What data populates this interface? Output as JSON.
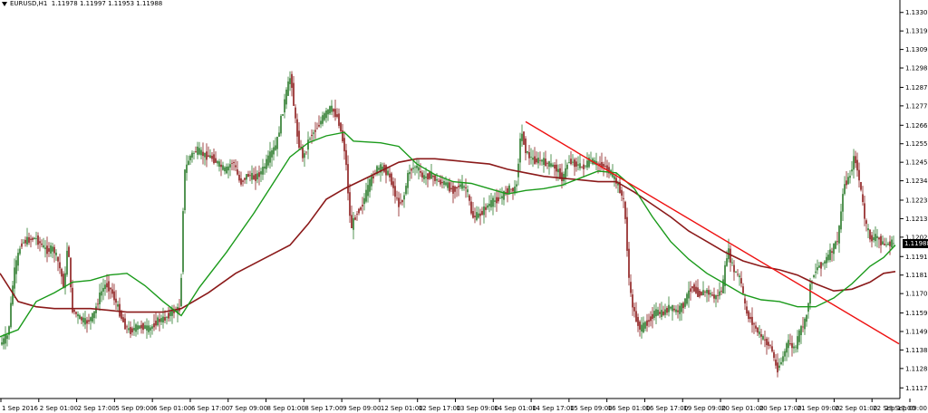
{
  "header": {
    "symbol": "EURUSD,H1",
    "ohlc": "1.11978 1.11997 1.11953 1.11988"
  },
  "price_tag": "1.11988",
  "colors": {
    "bull_candle": "#2a7a2a",
    "bear_candle": "#8b1a1a",
    "ma_fast": "#1a9a1a",
    "ma_slow": "#8b1a1a",
    "trendline": "#ee1111",
    "axis": "#000000"
  },
  "chart_data": {
    "type": "candlestick",
    "symbol": "EURUSD",
    "timeframe": "H1",
    "y_ticks": [
      "1.13300",
      "1.13195",
      "1.13090",
      "1.12985",
      "1.12875",
      "1.12770",
      "1.12660",
      "1.12555",
      "1.12450",
      "1.12345",
      "1.12235",
      "1.12130",
      "1.12025",
      "1.11915",
      "1.11810",
      "1.11705",
      "1.11595",
      "1.11490",
      "1.11385",
      "1.11280",
      "1.11170"
    ],
    "x_ticks": [
      "1 Sep 2016",
      "2 Sep 01:00",
      "2 Sep 17:00",
      "5 Sep 09:00",
      "6 Sep 01:00",
      "6 Sep 17:00",
      "7 Sep 09:00",
      "8 Sep 01:00",
      "8 Sep 17:00",
      "9 Sep 09:00",
      "12 Sep 01:00",
      "12 Sep 17:00",
      "13 Sep 09:00",
      "14 Sep 01:00",
      "14 Sep 17:00",
      "15 Sep 09:00",
      "16 Sep 01:00",
      "16 Sep 17:00",
      "19 Sep 09:00",
      "20 Sep 01:00",
      "20 Sep 17:00",
      "21 Sep 09:00",
      "22 Sep 01:00",
      "22 Sep 17:00",
      "23 Sep 09:00"
    ],
    "ylim": [
      1.1112,
      1.1335
    ],
    "close_path": [
      [
        0,
        1.1141
      ],
      [
        10,
        1.1147
      ],
      [
        16,
        1.1181
      ],
      [
        24,
        1.1199
      ],
      [
        32,
        1.1201
      ],
      [
        40,
        1.1202
      ],
      [
        52,
        1.1195
      ],
      [
        60,
        1.1196
      ],
      [
        66,
        1.1187
      ],
      [
        72,
        1.1173
      ],
      [
        76,
        1.1203
      ],
      [
        80,
        1.1162
      ],
      [
        88,
        1.1157
      ],
      [
        96,
        1.1154
      ],
      [
        104,
        1.1158
      ],
      [
        112,
        1.1171
      ],
      [
        118,
        1.1176
      ],
      [
        124,
        1.1172
      ],
      [
        132,
        1.1161
      ],
      [
        138,
        1.1153
      ],
      [
        144,
        1.1149
      ],
      [
        150,
        1.1151
      ],
      [
        158,
        1.1152
      ],
      [
        166,
        1.115
      ],
      [
        174,
        1.1155
      ],
      [
        182,
        1.1156
      ],
      [
        190,
        1.116
      ],
      [
        196,
        1.1161
      ],
      [
        200,
        1.1162
      ],
      [
        204,
        1.1238
      ],
      [
        210,
        1.1248
      ],
      [
        218,
        1.1252
      ],
      [
        226,
        1.1249
      ],
      [
        234,
        1.1248
      ],
      [
        242,
        1.1244
      ],
      [
        250,
        1.124
      ],
      [
        258,
        1.1246
      ],
      [
        266,
        1.1233
      ],
      [
        274,
        1.1238
      ],
      [
        282,
        1.1236
      ],
      [
        290,
        1.124
      ],
      [
        298,
        1.1248
      ],
      [
        306,
        1.1255
      ],
      [
        312,
        1.1272
      ],
      [
        318,
        1.1287
      ],
      [
        322,
        1.1295
      ],
      [
        326,
        1.1272
      ],
      [
        330,
        1.1257
      ],
      [
        336,
        1.1247
      ],
      [
        342,
        1.1259
      ],
      [
        350,
        1.1264
      ],
      [
        358,
        1.1271
      ],
      [
        366,
        1.1276
      ],
      [
        374,
        1.127
      ],
      [
        382,
        1.125
      ],
      [
        388,
        1.1207
      ],
      [
        394,
        1.1216
      ],
      [
        400,
        1.122
      ],
      [
        408,
        1.1232
      ],
      [
        416,
        1.1241
      ],
      [
        424,
        1.1242
      ],
      [
        432,
        1.1236
      ],
      [
        440,
        1.1221
      ],
      [
        446,
        1.1224
      ],
      [
        452,
        1.124
      ],
      [
        460,
        1.1243
      ],
      [
        468,
        1.1236
      ],
      [
        476,
        1.1238
      ],
      [
        484,
        1.1234
      ],
      [
        492,
        1.1233
      ],
      [
        500,
        1.1229
      ],
      [
        508,
        1.1232
      ],
      [
        516,
        1.123
      ],
      [
        522,
        1.1214
      ],
      [
        530,
        1.1215
      ],
      [
        538,
        1.122
      ],
      [
        546,
        1.1223
      ],
      [
        554,
        1.1225
      ],
      [
        562,
        1.123
      ],
      [
        570,
        1.1229
      ],
      [
        576,
        1.1263
      ],
      [
        582,
        1.125
      ],
      [
        590,
        1.1246
      ],
      [
        598,
        1.1246
      ],
      [
        606,
        1.1244
      ],
      [
        614,
        1.1242
      ],
      [
        622,
        1.1235
      ],
      [
        628,
        1.1246
      ],
      [
        636,
        1.1244
      ],
      [
        644,
        1.1242
      ],
      [
        652,
        1.1246
      ],
      [
        660,
        1.1244
      ],
      [
        668,
        1.1243
      ],
      [
        676,
        1.1238
      ],
      [
        684,
        1.1231
      ],
      [
        690,
        1.1221
      ],
      [
        696,
        1.1171
      ],
      [
        702,
        1.1157
      ],
      [
        708,
        1.115
      ],
      [
        716,
        1.1155
      ],
      [
        724,
        1.116
      ],
      [
        732,
        1.1159
      ],
      [
        740,
        1.1163
      ],
      [
        748,
        1.116
      ],
      [
        756,
        1.1165
      ],
      [
        764,
        1.1175
      ],
      [
        772,
        1.117
      ],
      [
        780,
        1.1172
      ],
      [
        790,
        1.1168
      ],
      [
        798,
        1.1173
      ],
      [
        804,
        1.1196
      ],
      [
        810,
        1.1184
      ],
      [
        818,
        1.1179
      ],
      [
        824,
        1.116
      ],
      [
        830,
        1.1155
      ],
      [
        838,
        1.1148
      ],
      [
        846,
        1.1143
      ],
      [
        852,
        1.114
      ],
      [
        858,
        1.1127
      ],
      [
        864,
        1.1133
      ],
      [
        870,
        1.1143
      ],
      [
        878,
        1.1139
      ],
      [
        884,
        1.115
      ],
      [
        890,
        1.1155
      ],
      [
        896,
        1.1178
      ],
      [
        902,
        1.1185
      ],
      [
        910,
        1.1188
      ],
      [
        918,
        1.1194
      ],
      [
        926,
        1.1202
      ],
      [
        932,
        1.1232
      ],
      [
        938,
        1.1236
      ],
      [
        944,
        1.1249
      ],
      [
        950,
        1.1232
      ],
      [
        956,
        1.121
      ],
      [
        962,
        1.1201
      ],
      [
        968,
        1.1203
      ],
      [
        976,
        1.1198
      ],
      [
        984,
        1.1199
      ]
    ],
    "ma_fast": [
      [
        0,
        1.1146
      ],
      [
        20,
        1.115
      ],
      [
        40,
        1.1166
      ],
      [
        60,
        1.1171
      ],
      [
        80,
        1.1177
      ],
      [
        100,
        1.1178
      ],
      [
        120,
        1.1181
      ],
      [
        140,
        1.1182
      ],
      [
        160,
        1.1175
      ],
      [
        180,
        1.1166
      ],
      [
        200,
        1.1158
      ],
      [
        220,
        1.1174
      ],
      [
        250,
        1.1194
      ],
      [
        280,
        1.1216
      ],
      [
        300,
        1.1232
      ],
      [
        320,
        1.1248
      ],
      [
        340,
        1.1256
      ],
      [
        360,
        1.126
      ],
      [
        380,
        1.1262
      ],
      [
        390,
        1.1257
      ],
      [
        420,
        1.1256
      ],
      [
        440,
        1.1254
      ],
      [
        460,
        1.1244
      ],
      [
        480,
        1.1238
      ],
      [
        500,
        1.1234
      ],
      [
        520,
        1.1233
      ],
      [
        540,
        1.123
      ],
      [
        560,
        1.1227
      ],
      [
        580,
        1.1229
      ],
      [
        600,
        1.123
      ],
      [
        620,
        1.1232
      ],
      [
        640,
        1.1236
      ],
      [
        660,
        1.124
      ],
      [
        680,
        1.1239
      ],
      [
        700,
        1.123
      ],
      [
        720,
        1.1214
      ],
      [
        740,
        1.12
      ],
      [
        760,
        1.119
      ],
      [
        780,
        1.1182
      ],
      [
        800,
        1.1176
      ],
      [
        820,
        1.117
      ],
      [
        840,
        1.1167
      ],
      [
        860,
        1.1166
      ],
      [
        880,
        1.1163
      ],
      [
        900,
        1.1163
      ],
      [
        920,
        1.1168
      ],
      [
        940,
        1.1176
      ],
      [
        960,
        1.1186
      ],
      [
        975,
        1.1191
      ],
      [
        988,
        1.1198
      ]
    ],
    "ma_slow": [
      [
        0,
        1.1182
      ],
      [
        20,
        1.1166
      ],
      [
        40,
        1.1163
      ],
      [
        60,
        1.1162
      ],
      [
        80,
        1.1162
      ],
      [
        100,
        1.1162
      ],
      [
        120,
        1.1161
      ],
      [
        140,
        1.116
      ],
      [
        160,
        1.116
      ],
      [
        180,
        1.116
      ],
      [
        200,
        1.1162
      ],
      [
        230,
        1.1171
      ],
      [
        260,
        1.1182
      ],
      [
        290,
        1.119
      ],
      [
        320,
        1.1198
      ],
      [
        340,
        1.121
      ],
      [
        360,
        1.1224
      ],
      [
        380,
        1.123
      ],
      [
        400,
        1.1235
      ],
      [
        420,
        1.124
      ],
      [
        440,
        1.1245
      ],
      [
        460,
        1.1247
      ],
      [
        480,
        1.1247
      ],
      [
        500,
        1.1246
      ],
      [
        520,
        1.1245
      ],
      [
        540,
        1.1244
      ],
      [
        560,
        1.1241
      ],
      [
        580,
        1.1239
      ],
      [
        600,
        1.1237
      ],
      [
        620,
        1.1236
      ],
      [
        640,
        1.1235
      ],
      [
        660,
        1.1234
      ],
      [
        680,
        1.1234
      ],
      [
        700,
        1.1228
      ],
      [
        720,
        1.1221
      ],
      [
        740,
        1.1214
      ],
      [
        760,
        1.1206
      ],
      [
        780,
        1.12
      ],
      [
        800,
        1.1194
      ],
      [
        820,
        1.1189
      ],
      [
        840,
        1.1186
      ],
      [
        860,
        1.1184
      ],
      [
        880,
        1.1181
      ],
      [
        900,
        1.1176
      ],
      [
        920,
        1.1172
      ],
      [
        940,
        1.1173
      ],
      [
        960,
        1.1177
      ],
      [
        975,
        1.1182
      ],
      [
        988,
        1.1183
      ]
    ],
    "trendline": [
      [
        580,
        1.1268
      ],
      [
        992,
        1.1142
      ]
    ]
  }
}
